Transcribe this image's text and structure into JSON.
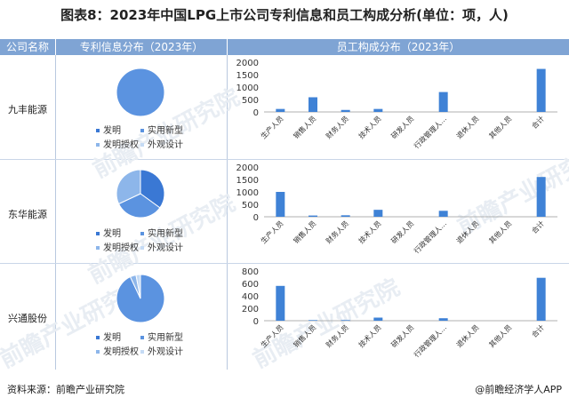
{
  "title": "图表8：2023年中国LPG上市公司专利信息和员工构成分析(单位：项，人)",
  "header": {
    "col1": "公司名称",
    "col2": "专利信息分布（2023年）",
    "col3": "员工构成分布（2023年）"
  },
  "legend": [
    "发明",
    "实用新型",
    "发明授权",
    "外观设计"
  ],
  "colors": {
    "header_bg": "#7fa4d4",
    "bar": "#3f82d6",
    "pie_main": "#5b93e0",
    "pie_mid": "#8db6ea",
    "pie_dark": "#3a78d4"
  },
  "watermark": "前瞻产业研究院",
  "footer": {
    "source": "资料来源：前瞻产业研究院",
    "brand": "@前瞻经济学人APP"
  },
  "chart_data": [
    {
      "company": "九丰能源",
      "type": "pie",
      "title": "",
      "labels": [
        "发明",
        "实用新型",
        "发明授权",
        "外观设计"
      ],
      "values": [
        0,
        100,
        0,
        0
      ],
      "colors": [
        "#3a78d4",
        "#5b93e0",
        "#8db6ea",
        "#c5dbf5"
      ]
    },
    {
      "company": "九丰能源",
      "type": "bar",
      "categories": [
        "生产人员",
        "销售人员",
        "财务人员",
        "技术人员",
        "研发人员",
        "行政管理人...",
        "退休人员",
        "其他人员",
        "合计"
      ],
      "values": [
        120,
        590,
        80,
        120,
        0,
        800,
        0,
        0,
        1730
      ],
      "yticks": [
        0,
        500,
        1000,
        1500,
        2000
      ],
      "ylim": [
        0,
        2000
      ]
    },
    {
      "company": "东华能源",
      "type": "pie",
      "title": "",
      "labels": [
        "发明",
        "实用新型",
        "发明授权",
        "外观设计"
      ],
      "values": [
        35,
        33,
        32,
        0
      ],
      "colors": [
        "#3a78d4",
        "#5b93e0",
        "#8db6ea",
        "#c5dbf5"
      ]
    },
    {
      "company": "东华能源",
      "type": "bar",
      "categories": [
        "生产人员",
        "销售人员",
        "财务人员",
        "技术人员",
        "研发人员",
        "行政管理人...",
        "退休人员",
        "其他人员",
        "合计"
      ],
      "values": [
        1000,
        50,
        60,
        280,
        0,
        240,
        0,
        0,
        1600
      ],
      "yticks": [
        0,
        500,
        1000,
        1500,
        2000
      ],
      "ylim": [
        0,
        2000
      ]
    },
    {
      "company": "兴通股份",
      "type": "pie",
      "title": "",
      "labels": [
        "发明",
        "实用新型",
        "发明授权",
        "外观设计"
      ],
      "values": [
        0,
        93,
        4,
        3
      ],
      "colors": [
        "#3a78d4",
        "#5b93e0",
        "#8db6ea",
        "#c5dbf5"
      ]
    },
    {
      "company": "兴通股份",
      "type": "bar",
      "categories": [
        "生产人员",
        "销售人员",
        "财务人员",
        "技术人员",
        "研发人员",
        "行政管理人...",
        "退休人员",
        "其他人员",
        "合计"
      ],
      "values": [
        560,
        10,
        10,
        50,
        0,
        40,
        0,
        0,
        690
      ],
      "yticks": [
        0,
        200,
        400,
        600,
        800
      ],
      "ylim": [
        0,
        800
      ]
    }
  ]
}
